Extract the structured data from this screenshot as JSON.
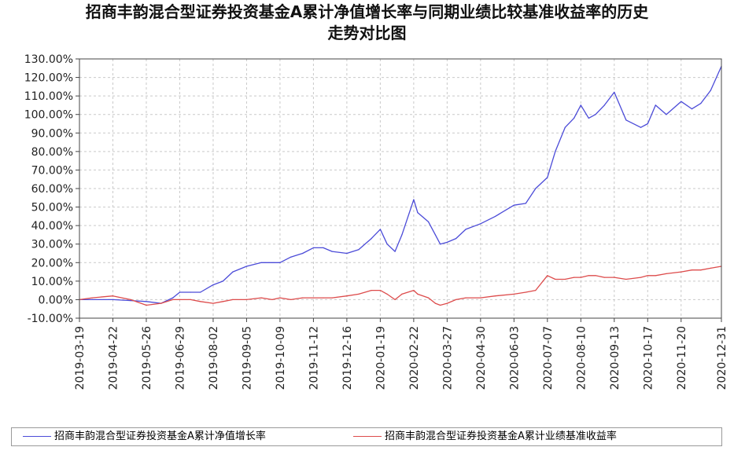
{
  "chart_title_line1": "招商丰韵混合型证券投资基金A累计净值增长率与同期业绩比较基准收益率的历史",
  "chart_title_line2": "走势对比图",
  "colors": {
    "fund": "#4b4bd8",
    "benchmark": "#dd4b4b",
    "grid": "#c9c9c9",
    "axis": "#444444"
  },
  "chart_data": {
    "type": "line",
    "title": "招商丰韵混合型证券投资基金A累计净值增长率与同期业绩比较基准收益率的历史走势对比图",
    "xlabel": "",
    "ylabel": "",
    "ylim": [
      -10,
      130
    ],
    "y_ticks": [
      "-10.00%",
      "0.00%",
      "10.00%",
      "20.00%",
      "30.00%",
      "40.00%",
      "50.00%",
      "60.00%",
      "70.00%",
      "80.00%",
      "90.00%",
      "100.00%",
      "110.00%",
      "120.00%",
      "130.00%"
    ],
    "x_ticks": [
      "2019-03-19",
      "2019-04-22",
      "2019-05-26",
      "2019-06-29",
      "2019-08-02",
      "2019-09-05",
      "2019-10-09",
      "2019-11-12",
      "2019-12-16",
      "2020-01-19",
      "2020-02-22",
      "2020-03-27",
      "2020-04-30",
      "2020-06-03",
      "2020-07-07",
      "2020-08-10",
      "2020-09-13",
      "2020-10-17",
      "2020-11-20",
      "2020-12-31"
    ],
    "grid": true,
    "legend_position": "bottom",
    "series": [
      {
        "name": "招商丰韵混合型证券投资基金A累计净值增长率",
        "color": "#4b4bd8",
        "x": [
          "2019-03-19",
          "2019-04-01",
          "2019-04-22",
          "2019-05-10",
          "2019-05-26",
          "2019-06-10",
          "2019-06-22",
          "2019-06-29",
          "2019-07-10",
          "2019-07-20",
          "2019-08-02",
          "2019-08-12",
          "2019-08-22",
          "2019-09-05",
          "2019-09-20",
          "2019-10-01",
          "2019-10-09",
          "2019-10-20",
          "2019-11-01",
          "2019-11-12",
          "2019-11-22",
          "2019-12-01",
          "2019-12-16",
          "2019-12-28",
          "2020-01-10",
          "2020-01-19",
          "2020-01-26",
          "2020-02-03",
          "2020-02-10",
          "2020-02-22",
          "2020-02-26",
          "2020-03-08",
          "2020-03-15",
          "2020-03-20",
          "2020-03-27",
          "2020-04-05",
          "2020-04-15",
          "2020-04-30",
          "2020-05-15",
          "2020-06-03",
          "2020-06-15",
          "2020-06-25",
          "2020-07-07",
          "2020-07-15",
          "2020-07-25",
          "2020-08-03",
          "2020-08-10",
          "2020-08-18",
          "2020-08-25",
          "2020-09-03",
          "2020-09-13",
          "2020-09-25",
          "2020-10-10",
          "2020-10-17",
          "2020-10-25",
          "2020-11-05",
          "2020-11-20",
          "2020-12-01",
          "2020-12-10",
          "2020-12-20",
          "2020-12-31"
        ],
        "values": [
          0,
          0,
          0,
          -0.5,
          -1,
          -2,
          1,
          4,
          4,
          4,
          8,
          10,
          15,
          18,
          20,
          20,
          20,
          23,
          25,
          28,
          28,
          26,
          25,
          27,
          33,
          38,
          30,
          26,
          35,
          54,
          47,
          42,
          35,
          30,
          31,
          33,
          38,
          41,
          45,
          51,
          52,
          60,
          66,
          80,
          93,
          98,
          105,
          98,
          100,
          105,
          112,
          97,
          93,
          95,
          105,
          100,
          107,
          103,
          106,
          113,
          126
        ]
      },
      {
        "name": "招商丰韵混合型证券投资基金A累计业绩基准收益率",
        "color": "#dd4b4b",
        "x": [
          "2019-03-19",
          "2019-04-01",
          "2019-04-22",
          "2019-05-10",
          "2019-05-26",
          "2019-06-10",
          "2019-06-22",
          "2019-06-29",
          "2019-07-10",
          "2019-07-20",
          "2019-08-02",
          "2019-08-12",
          "2019-08-22",
          "2019-09-05",
          "2019-09-20",
          "2019-10-01",
          "2019-10-09",
          "2019-10-20",
          "2019-11-01",
          "2019-11-12",
          "2019-11-22",
          "2019-12-01",
          "2019-12-16",
          "2019-12-28",
          "2020-01-10",
          "2020-01-19",
          "2020-01-26",
          "2020-02-03",
          "2020-02-10",
          "2020-02-22",
          "2020-02-26",
          "2020-03-08",
          "2020-03-15",
          "2020-03-20",
          "2020-03-27",
          "2020-04-05",
          "2020-04-15",
          "2020-04-30",
          "2020-05-15",
          "2020-06-03",
          "2020-06-15",
          "2020-06-25",
          "2020-07-07",
          "2020-07-15",
          "2020-07-25",
          "2020-08-03",
          "2020-08-10",
          "2020-08-18",
          "2020-08-25",
          "2020-09-03",
          "2020-09-13",
          "2020-09-25",
          "2020-10-10",
          "2020-10-17",
          "2020-10-25",
          "2020-11-05",
          "2020-11-20",
          "2020-12-01",
          "2020-12-10",
          "2020-12-20",
          "2020-12-31"
        ],
        "values": [
          0,
          1,
          2,
          0,
          -3,
          -2,
          0,
          0,
          0,
          -1,
          -2,
          -1,
          0,
          0,
          1,
          0,
          1,
          0,
          1,
          1,
          1,
          1,
          2,
          3,
          5,
          5,
          3,
          0,
          3,
          5,
          3,
          1,
          -2,
          -3,
          -2,
          0,
          1,
          1,
          2,
          3,
          4,
          5,
          13,
          11,
          11,
          12,
          12,
          13,
          13,
          12,
          12,
          11,
          12,
          13,
          13,
          14,
          15,
          16,
          16,
          17,
          18
        ]
      }
    ]
  }
}
